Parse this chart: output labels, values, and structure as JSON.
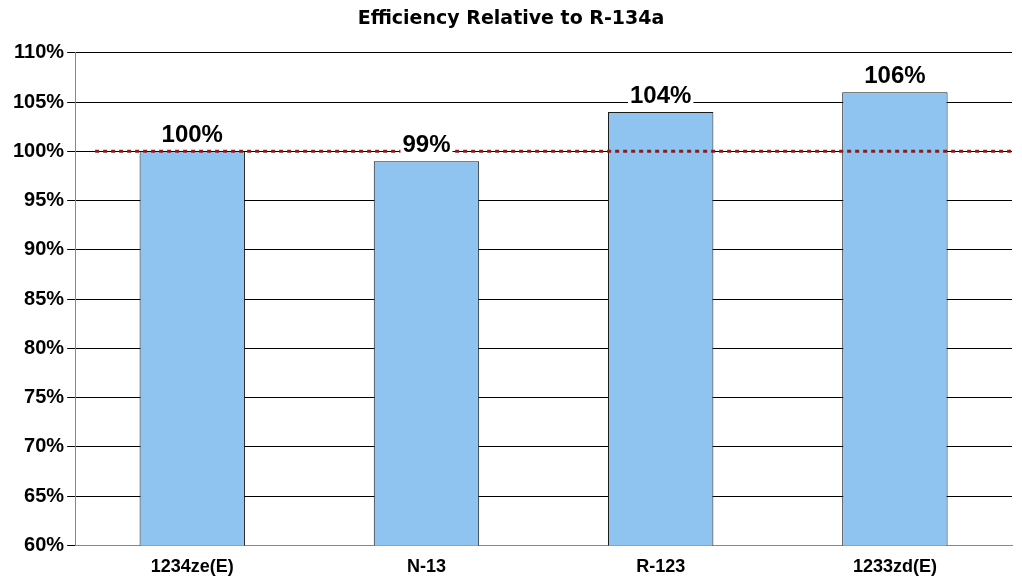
{
  "chart_data": {
    "type": "bar",
    "title": "Efficiency Relative to R-134a",
    "categories": [
      "1234ze(E)",
      "N-13",
      "R-123",
      "1233zd(E)"
    ],
    "values": [
      100,
      99,
      104,
      106
    ],
    "color": "#8fc3f0",
    "value_labels": [
      "100%",
      "99%",
      "104%",
      "106%"
    ],
    "ylim": [
      60,
      110
    ],
    "yticks": [
      {
        "value": 60,
        "label": "60%"
      },
      {
        "value": 65,
        "label": "65%"
      },
      {
        "value": 70,
        "label": "70%"
      },
      {
        "value": 75,
        "label": "75%"
      },
      {
        "value": 80,
        "label": "80%"
      },
      {
        "value": 85,
        "label": "85%"
      },
      {
        "value": 90,
        "label": "90%"
      },
      {
        "value": 95,
        "label": "95%"
      },
      {
        "value": 100,
        "label": "100%"
      },
      {
        "value": 105,
        "label": "105%"
      },
      {
        "value": 110,
        "label": "110%"
      }
    ],
    "grid": "y",
    "legend": false,
    "ref_lines": [
      {
        "axis": "y",
        "value": 100,
        "color": "#8b1a1a",
        "line_style": "dotted"
      }
    ]
  }
}
